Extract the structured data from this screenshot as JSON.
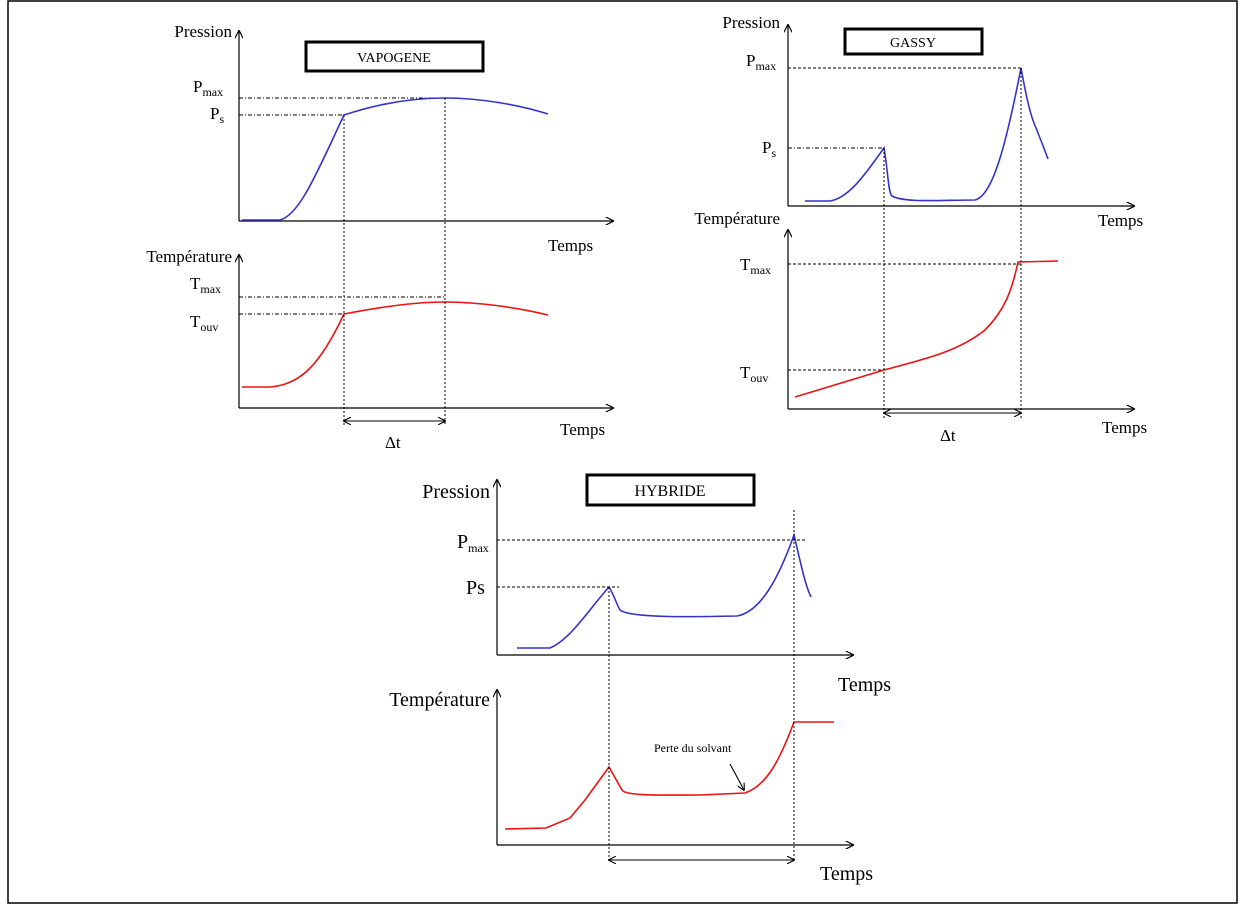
{
  "vapogene": {
    "title": "VAPOGENE",
    "pressure_axis": "Pression",
    "temperature_axis": "Température",
    "time_axis_top": "Temps",
    "time_axis_bottom": "Temps",
    "pmax_base": "P",
    "pmax_sub": "max",
    "ps_base": "P",
    "ps_sub": "s",
    "tmax_base": "T",
    "tmax_sub": "max",
    "touv_base": "T",
    "touv_sub": "ouv",
    "delta": "Δt"
  },
  "gassy": {
    "title": "GASSY",
    "pressure_axis": "Pression",
    "temperature_axis": "Température",
    "time_axis_top": "Temps",
    "time_axis_bottom": "Temps",
    "pmax_base": "P",
    "pmax_sub": "max",
    "ps_base": "P",
    "ps_sub": "s",
    "tmax_base": "T",
    "tmax_sub": "max",
    "touv_base": "T",
    "touv_sub": "ouv",
    "delta": "Δt"
  },
  "hybride": {
    "title": "HYBRIDE",
    "pressure_axis": "Pression",
    "temperature_axis": "Température",
    "time_axis_top": "Temps",
    "time_axis_bottom": "Temps",
    "pmax_base": "P",
    "pmax_sub": "max",
    "ps_label": "Ps",
    "annotation": "Perte du solvant"
  },
  "colors": {
    "pressure": "#3333cc",
    "temperature": "#ee1111",
    "axis": "#000000"
  }
}
